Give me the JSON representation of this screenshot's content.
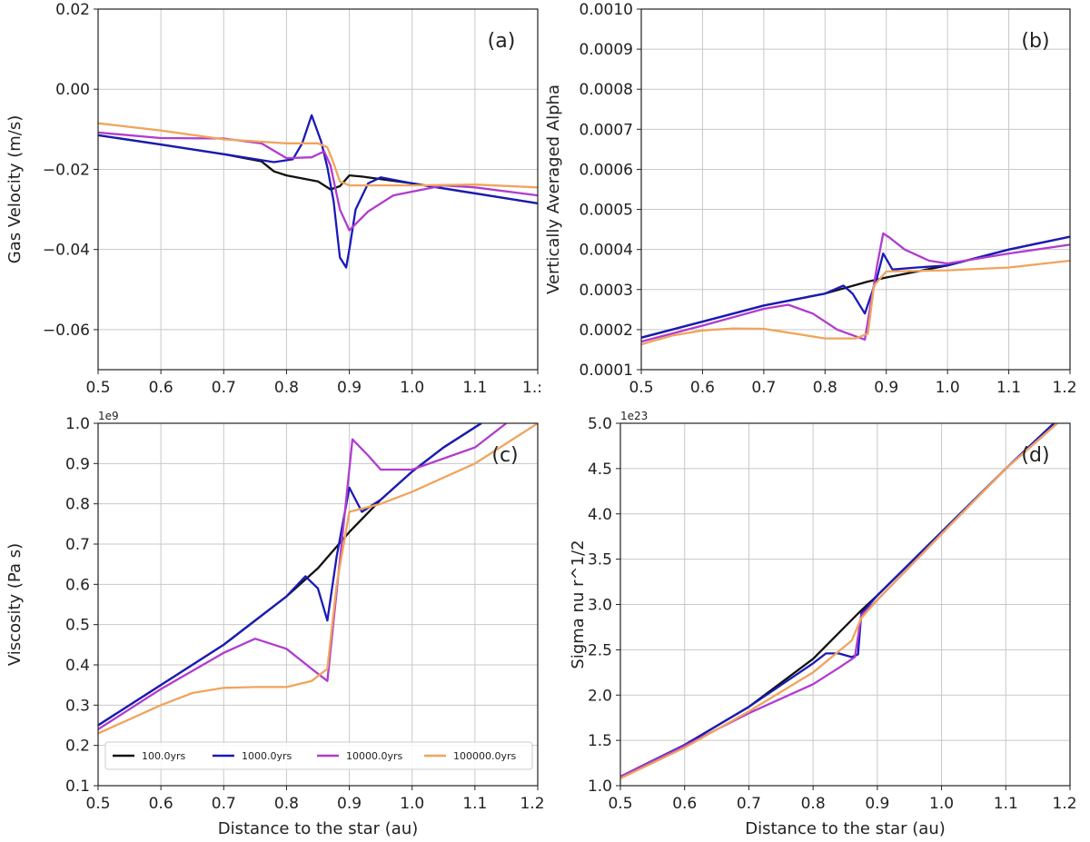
{
  "chart_data": [
    {
      "panel": "(a)",
      "type": "line",
      "xlabel": "",
      "ylabel": "Gas Velocity (m/s)",
      "xlim": [
        0.5,
        1.2
      ],
      "ylim": [
        -0.07,
        0.02
      ],
      "xticks": [
        0.5,
        0.6,
        0.7,
        0.8,
        0.9,
        1.0,
        1.1,
        1.2
      ],
      "xtick_labels": [
        "0.5",
        "0.6",
        "0.7",
        "0.8",
        "0.9",
        "1.0",
        "1.1",
        "1.:"
      ],
      "yticks": [
        -0.06,
        -0.04,
        -0.02,
        0.0,
        0.02
      ],
      "ytick_labels": [
        "−0.06",
        "−0.04",
        "−0.02",
        "0.00",
        "0.02"
      ],
      "multiplier": "",
      "grid": true,
      "series": [
        {
          "name": "100.0yrs",
          "color": "#111111",
          "x": [
            0.5,
            0.6,
            0.7,
            0.76,
            0.78,
            0.8,
            0.85,
            0.87,
            0.885,
            0.9,
            0.92,
            1.0,
            1.1,
            1.2
          ],
          "y": [
            -0.0115,
            -0.0138,
            -0.0162,
            -0.018,
            -0.0205,
            -0.0215,
            -0.023,
            -0.025,
            -0.0242,
            -0.0215,
            -0.0218,
            -0.0235,
            -0.026,
            -0.0285
          ]
        },
        {
          "name": "1000.0yrs",
          "color": "#1a1ab8",
          "x": [
            0.5,
            0.6,
            0.7,
            0.78,
            0.81,
            0.825,
            0.84,
            0.855,
            0.865,
            0.875,
            0.885,
            0.895,
            0.9,
            0.91,
            0.93,
            0.95,
            1.0,
            1.1,
            1.2
          ],
          "y": [
            -0.0115,
            -0.0138,
            -0.0162,
            -0.0182,
            -0.0175,
            -0.0135,
            -0.0065,
            -0.013,
            -0.0195,
            -0.028,
            -0.042,
            -0.0445,
            -0.04,
            -0.03,
            -0.0235,
            -0.022,
            -0.0235,
            -0.026,
            -0.0285
          ]
        },
        {
          "name": "10000.0yrs",
          "color": "#b03ccf",
          "x": [
            0.5,
            0.6,
            0.7,
            0.76,
            0.8,
            0.84,
            0.86,
            0.87,
            0.885,
            0.9,
            0.93,
            0.97,
            1.05,
            1.1,
            1.2
          ],
          "y": [
            -0.0108,
            -0.0122,
            -0.0123,
            -0.0135,
            -0.0172,
            -0.017,
            -0.0155,
            -0.019,
            -0.03,
            -0.0352,
            -0.0305,
            -0.0265,
            -0.024,
            -0.0245,
            -0.0265
          ]
        },
        {
          "name": "100000.0yrs",
          "color": "#f0a45c",
          "x": [
            0.5,
            0.6,
            0.7,
            0.8,
            0.85,
            0.865,
            0.875,
            0.885,
            0.9,
            1.0,
            1.1,
            1.2
          ],
          "y": [
            -0.0085,
            -0.0103,
            -0.0125,
            -0.0135,
            -0.0135,
            -0.0145,
            -0.0185,
            -0.023,
            -0.024,
            -0.024,
            -0.0238,
            -0.0245
          ]
        }
      ]
    },
    {
      "panel": "(b)",
      "type": "line",
      "xlabel": "",
      "ylabel": "Vertically Averaged Alpha",
      "xlim": [
        0.5,
        1.2
      ],
      "ylim": [
        0.0001,
        0.001
      ],
      "xticks": [
        0.5,
        0.6,
        0.7,
        0.8,
        0.9,
        1.0,
        1.1,
        1.2
      ],
      "xtick_labels": [
        "0.5",
        "0.6",
        "0.7",
        "0.8",
        "0.9",
        "1.0",
        "1.1",
        "1.2"
      ],
      "yticks": [
        0.0001,
        0.0002,
        0.0003,
        0.0004,
        0.0005,
        0.0006,
        0.0007,
        0.0008,
        0.0009,
        0.001
      ],
      "ytick_labels": [
        "0.0001",
        "0.0002",
        "0.0003",
        "0.0004",
        "0.0005",
        "0.0006",
        "0.0007",
        "0.0008",
        "0.0009",
        "0.0010"
      ],
      "multiplier": "",
      "grid": true,
      "series": [
        {
          "name": "100.0yrs",
          "color": "#111111",
          "x": [
            0.5,
            0.6,
            0.7,
            0.8,
            0.87,
            0.9,
            1.0,
            1.1,
            1.2
          ],
          "y": [
            0.00018,
            0.00022,
            0.00026,
            0.00029,
            0.00032,
            0.00033,
            0.00036,
            0.0004,
            0.000432
          ]
        },
        {
          "name": "1000.0yrs",
          "color": "#1a1ab8",
          "x": [
            0.5,
            0.6,
            0.7,
            0.8,
            0.83,
            0.845,
            0.865,
            0.885,
            0.895,
            0.91,
            0.95,
            1.0,
            1.1,
            1.2
          ],
          "y": [
            0.00018,
            0.00022,
            0.00026,
            0.00029,
            0.00031,
            0.00029,
            0.00024,
            0.00033,
            0.00039,
            0.00035,
            0.000355,
            0.00036,
            0.0004,
            0.000432
          ]
        },
        {
          "name": "10000.0yrs",
          "color": "#b03ccf",
          "x": [
            0.5,
            0.6,
            0.7,
            0.74,
            0.78,
            0.82,
            0.865,
            0.885,
            0.895,
            0.905,
            0.93,
            0.97,
            1.0,
            1.1,
            1.2
          ],
          "y": [
            0.00017,
            0.00021,
            0.000252,
            0.000262,
            0.00024,
            0.0002,
            0.000175,
            0.00036,
            0.00044,
            0.00043,
            0.0004,
            0.000372,
            0.000365,
            0.00039,
            0.000412
          ]
        },
        {
          "name": "100000.0yrs",
          "color": "#f0a45c",
          "x": [
            0.5,
            0.55,
            0.6,
            0.65,
            0.7,
            0.75,
            0.8,
            0.85,
            0.87,
            0.88,
            0.9,
            1.0,
            1.1,
            1.2
          ],
          "y": [
            0.000163,
            0.000185,
            0.000198,
            0.000203,
            0.000202,
            0.00019,
            0.000178,
            0.000178,
            0.00019,
            0.00031,
            0.000345,
            0.000348,
            0.000355,
            0.000372
          ]
        }
      ]
    },
    {
      "panel": "(c)",
      "type": "line",
      "xlabel": "Distance to the star (au)",
      "ylabel": "Viscosity (Pa s)",
      "xlim": [
        0.5,
        1.2
      ],
      "ylim": [
        0.1,
        1.0
      ],
      "xticks": [
        0.5,
        0.6,
        0.7,
        0.8,
        0.9,
        1.0,
        1.1,
        1.2
      ],
      "xtick_labels": [
        "0.5",
        "0.6",
        "0.7",
        "0.8",
        "0.9",
        "1.0",
        "1.1",
        "1.2"
      ],
      "yticks": [
        0.1,
        0.2,
        0.3,
        0.4,
        0.5,
        0.6,
        0.7,
        0.8,
        0.9,
        1.0
      ],
      "ytick_labels": [
        "0.1",
        "0.2",
        "0.3",
        "0.4",
        "0.5",
        "0.6",
        "0.7",
        "0.8",
        "0.9",
        "1.0"
      ],
      "multiplier": "1e9",
      "grid": true,
      "legend": {
        "position": "bottom",
        "entries": [
          "100.0yrs",
          "1000.0yrs",
          "10000.0yrs",
          "100000.0yrs"
        ]
      },
      "series": [
        {
          "name": "100.0yrs",
          "color": "#111111",
          "x": [
            0.5,
            0.6,
            0.7,
            0.8,
            0.85,
            0.9,
            0.95,
            1.0,
            1.05,
            1.11
          ],
          "y": [
            0.25,
            0.35,
            0.45,
            0.57,
            0.64,
            0.73,
            0.81,
            0.88,
            0.94,
            1.0
          ]
        },
        {
          "name": "1000.0yrs",
          "color": "#1a1ab8",
          "x": [
            0.5,
            0.6,
            0.7,
            0.8,
            0.83,
            0.85,
            0.865,
            0.88,
            0.9,
            0.92,
            0.95,
            1.0,
            1.05,
            1.11
          ],
          "y": [
            0.25,
            0.35,
            0.45,
            0.57,
            0.62,
            0.59,
            0.51,
            0.67,
            0.84,
            0.78,
            0.81,
            0.88,
            0.94,
            1.0
          ]
        },
        {
          "name": "10000.0yrs",
          "color": "#b03ccf",
          "x": [
            0.5,
            0.6,
            0.7,
            0.75,
            0.8,
            0.84,
            0.865,
            0.885,
            0.905,
            0.93,
            0.95,
            1.0,
            1.1,
            1.15
          ],
          "y": [
            0.24,
            0.34,
            0.43,
            0.465,
            0.44,
            0.39,
            0.36,
            0.66,
            0.96,
            0.92,
            0.885,
            0.885,
            0.94,
            1.0
          ]
        },
        {
          "name": "100000.0yrs",
          "color": "#f0a45c",
          "x": [
            0.5,
            0.55,
            0.6,
            0.65,
            0.7,
            0.75,
            0.8,
            0.84,
            0.865,
            0.88,
            0.9,
            0.95,
            1.0,
            1.1,
            1.2
          ],
          "y": [
            0.23,
            0.265,
            0.3,
            0.33,
            0.343,
            0.345,
            0.345,
            0.36,
            0.39,
            0.6,
            0.78,
            0.8,
            0.83,
            0.9,
            1.0
          ]
        }
      ]
    },
    {
      "panel": "(d)",
      "type": "line",
      "xlabel": "Distance to the star (au)",
      "ylabel": "Sigma nu r^1/2",
      "xlim": [
        0.5,
        1.2
      ],
      "ylim": [
        1.0,
        5.0
      ],
      "xticks": [
        0.5,
        0.6,
        0.7,
        0.8,
        0.9,
        1.0,
        1.1,
        1.2
      ],
      "xtick_labels": [
        "0.5",
        "0.6",
        "0.7",
        "0.8",
        "0.9",
        "1.0",
        "1.1",
        "1.2"
      ],
      "yticks": [
        1.0,
        1.5,
        2.0,
        2.5,
        3.0,
        3.5,
        4.0,
        4.5,
        5.0
      ],
      "ytick_labels": [
        "1.0",
        "1.5",
        "2.0",
        "2.5",
        "3.0",
        "3.5",
        "4.0",
        "4.5",
        "5.0"
      ],
      "multiplier": "1e23",
      "grid": true,
      "series": [
        {
          "name": "100.0yrs",
          "color": "#111111",
          "x": [
            0.5,
            0.6,
            0.7,
            0.8,
            0.87,
            0.9,
            1.0,
            1.1,
            1.175
          ],
          "y": [
            1.1,
            1.45,
            1.87,
            2.4,
            2.9,
            3.1,
            3.8,
            4.5,
            5.0
          ]
        },
        {
          "name": "1000.0yrs",
          "color": "#1a1ab8",
          "x": [
            0.5,
            0.6,
            0.7,
            0.8,
            0.82,
            0.84,
            0.86,
            0.87,
            0.875,
            0.9,
            1.0,
            1.1,
            1.175
          ],
          "y": [
            1.1,
            1.45,
            1.87,
            2.35,
            2.46,
            2.46,
            2.42,
            2.45,
            2.9,
            3.1,
            3.8,
            4.5,
            5.0
          ]
        },
        {
          "name": "10000.0yrs",
          "color": "#b03ccf",
          "x": [
            0.5,
            0.6,
            0.7,
            0.8,
            0.84,
            0.865,
            0.875,
            0.9,
            1.0,
            1.1,
            1.18
          ],
          "y": [
            1.1,
            1.44,
            1.8,
            2.12,
            2.3,
            2.42,
            2.88,
            3.05,
            3.78,
            4.5,
            5.0
          ]
        },
        {
          "name": "100000.0yrs",
          "color": "#f0a45c",
          "x": [
            0.5,
            0.6,
            0.7,
            0.8,
            0.86,
            0.875,
            0.9,
            1.0,
            1.1,
            1.18
          ],
          "y": [
            1.08,
            1.42,
            1.82,
            2.25,
            2.6,
            2.85,
            3.05,
            3.78,
            4.5,
            5.0
          ]
        }
      ]
    }
  ]
}
